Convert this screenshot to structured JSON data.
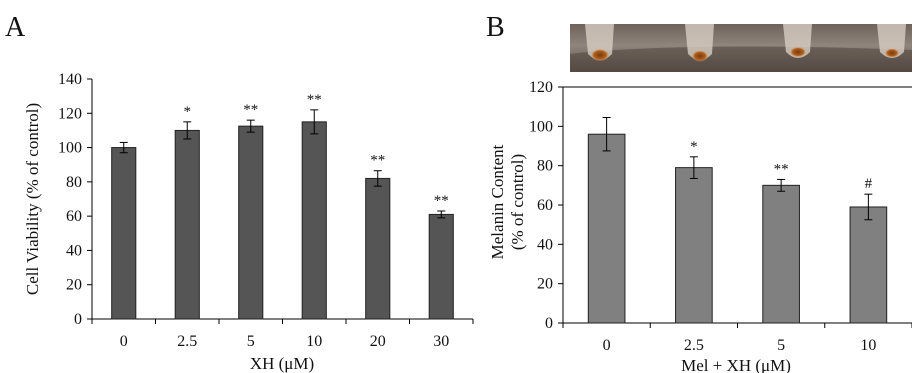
{
  "panels": [
    {
      "label": "A",
      "chart_data": {
        "type": "bar",
        "categories": [
          "0",
          "2.5",
          "5",
          "10",
          "20",
          "30"
        ],
        "values": [
          100,
          110,
          112.5,
          115,
          82,
          61
        ],
        "errors": [
          3,
          5,
          3.5,
          7,
          4.5,
          2
        ],
        "significance": [
          "",
          "*",
          "**",
          "**",
          "**",
          "**"
        ],
        "xlabel": "XH (μM)",
        "ylabel": "Cell Viability (% of control)",
        "ylim": [
          0,
          140
        ],
        "yticks": [
          0,
          20,
          40,
          60,
          80,
          100,
          120,
          140
        ],
        "grid": false,
        "bar_color": "#555555"
      }
    },
    {
      "label": "B",
      "image": {
        "name": "melanin-pellet-tubes",
        "count": 4
      },
      "chart_data": {
        "type": "bar",
        "categories": [
          "0",
          "2.5",
          "5",
          "10"
        ],
        "values": [
          96,
          79,
          70,
          59
        ],
        "errors": [
          8.5,
          5.5,
          3,
          6.5
        ],
        "significance": [
          "",
          "*",
          "**",
          "#"
        ],
        "xlabel": "Mel + XH (μM)",
        "ylabel_lines": [
          "Melanin Content",
          "(% of control)"
        ],
        "ylim": [
          0,
          120
        ],
        "yticks": [
          0,
          20,
          40,
          60,
          80,
          100,
          120
        ],
        "grid": false,
        "bar_color": "#808080"
      }
    }
  ]
}
